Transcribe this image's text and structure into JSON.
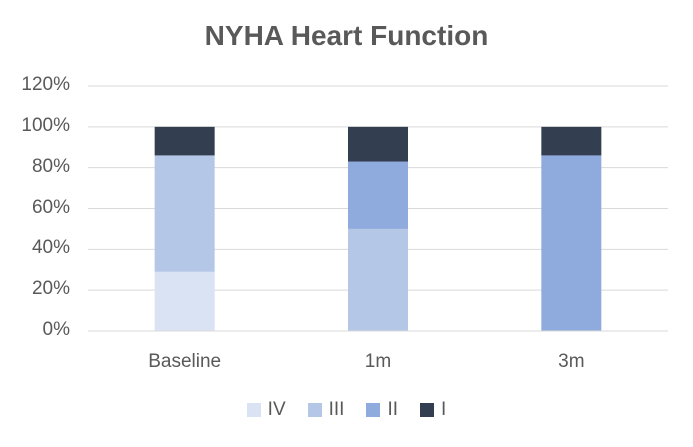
{
  "chart_data": {
    "type": "bar",
    "stacked": true,
    "title": "NYHA Heart Function",
    "categories": [
      "Baseline",
      "1m",
      "3m"
    ],
    "ylim": [
      0,
      1.2
    ],
    "yticks": [
      "0%",
      "20%",
      "40%",
      "60%",
      "80%",
      "100%",
      "120%"
    ],
    "ytick_values": [
      0,
      0.2,
      0.4,
      0.6,
      0.8,
      1.0,
      1.2
    ],
    "grid": true,
    "legend": "bottom",
    "series": [
      {
        "name": "IV",
        "color": "#dae3f3",
        "values": [
          0.29,
          0.0,
          0.0
        ]
      },
      {
        "name": "III",
        "color": "#b4c7e7",
        "values": [
          0.57,
          0.5,
          0.0
        ]
      },
      {
        "name": "II",
        "color": "#8faadc",
        "values": [
          0.0,
          0.33,
          0.86
        ]
      },
      {
        "name": "I",
        "color": "#333f50",
        "values": [
          0.14,
          0.17,
          0.14
        ]
      }
    ]
  }
}
